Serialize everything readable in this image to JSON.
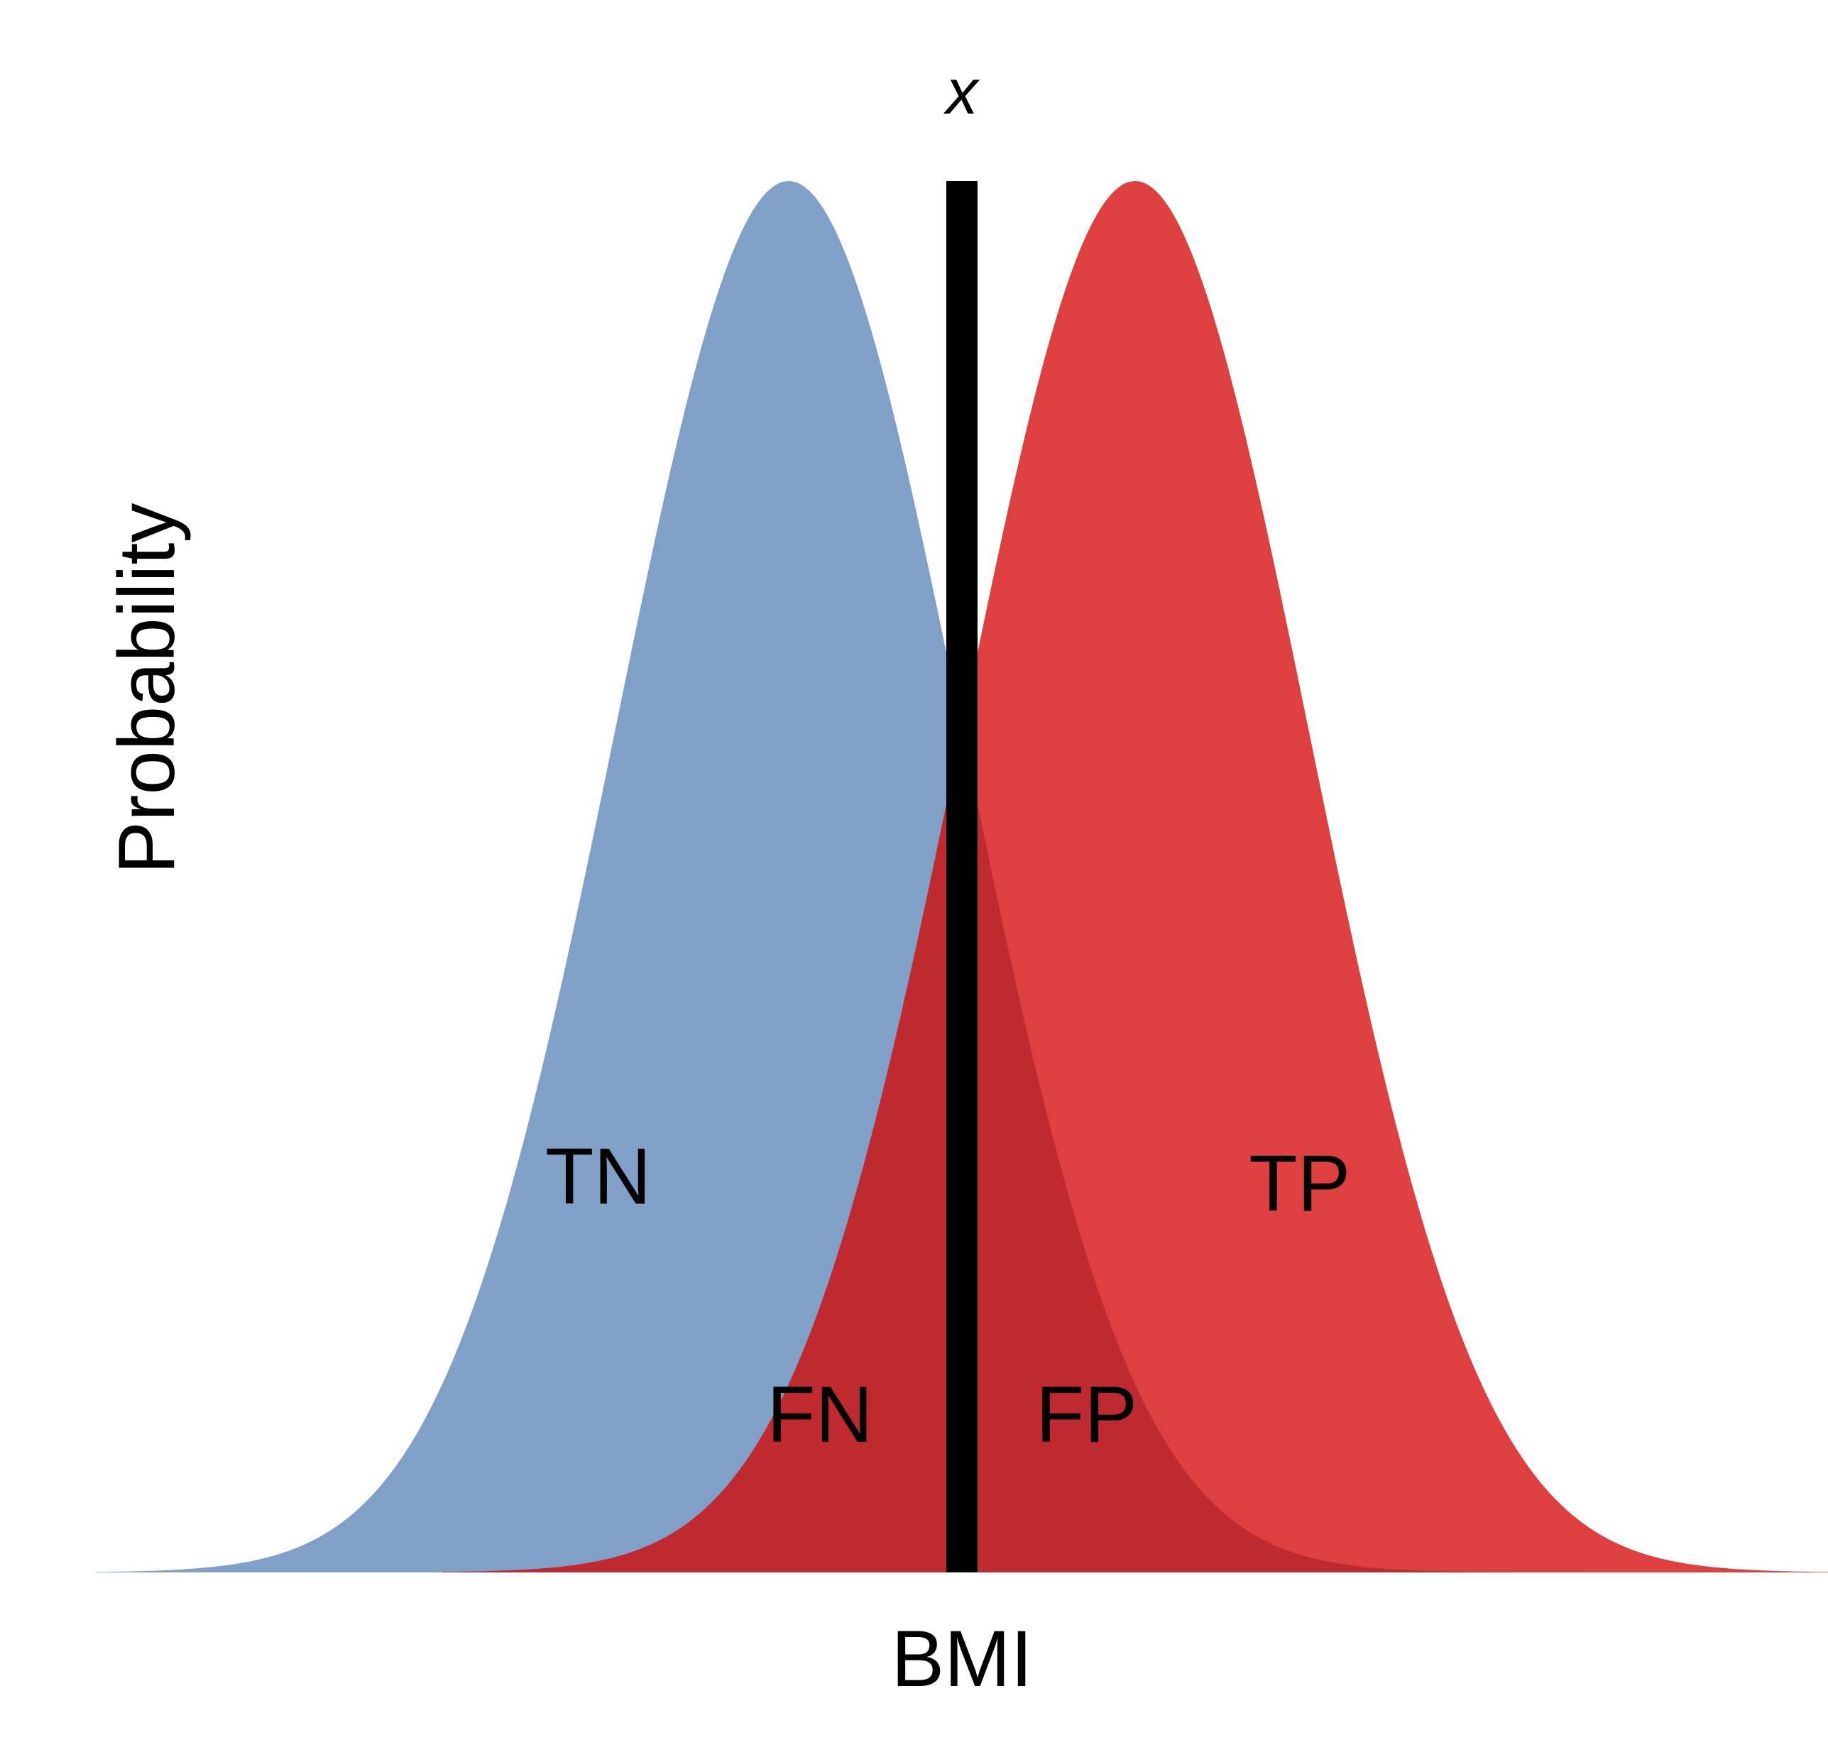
{
  "chart_data": {
    "type": "area",
    "title": "",
    "xlabel": "BMI",
    "ylabel": "Probability",
    "grid": false,
    "legend": "none",
    "x_range": [
      -5,
      5
    ],
    "y_range": [
      0,
      1
    ],
    "series": [
      {
        "key": "negative",
        "mean": -1,
        "sd": 1,
        "x_range": [
          -5,
          5
        ],
        "color": "#81a0c8"
      },
      {
        "key": "positive",
        "mean": 1,
        "sd": 1,
        "x_range": [
          -3,
          5
        ],
        "color": "#dd403e"
      }
    ],
    "overlap_color": "#bf2a31",
    "threshold": {
      "x": 0,
      "label": "x",
      "color": "#000000"
    },
    "regions": [
      {
        "label": "TN",
        "x": -2.1,
        "y": 0.265
      },
      {
        "label": "FN",
        "x": -0.82,
        "y": 0.094
      },
      {
        "label": "FP",
        "x": 0.72,
        "y": 0.094
      },
      {
        "label": "TP",
        "x": 1.95,
        "y": 0.26
      }
    ]
  }
}
